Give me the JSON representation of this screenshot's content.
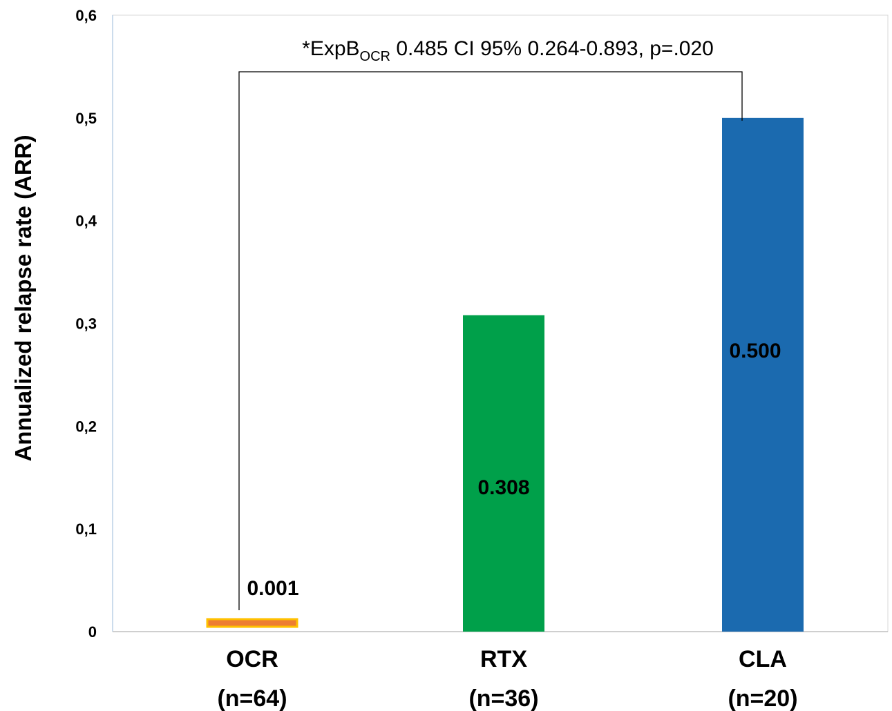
{
  "chart_data": {
    "type": "bar",
    "categories": [
      "OCR",
      "RTX",
      "CLA"
    ],
    "category_subtitles": [
      "(n=64)",
      "(n=36)",
      "(n=20)"
    ],
    "values": [
      0.001,
      0.308,
      0.5
    ],
    "data_labels": [
      "0.001",
      "0.308",
      "0.500"
    ],
    "colors": [
      "#ED7D31",
      "#00A04A",
      "#1B6AAF"
    ],
    "ocr_outline_color": "#FFC000",
    "ylabel": "Annualized relapse rate (ARR)",
    "ylim": [
      0,
      0.6
    ],
    "yticks": [
      0,
      0.1,
      0.2,
      0.3,
      0.4,
      0.5,
      0.6
    ],
    "ytick_labels": [
      "0",
      "0,1",
      "0,2",
      "0,3",
      "0,4",
      "0,5",
      "0,6"
    ],
    "grid": false,
    "annotation": {
      "prefix": "*ExpB",
      "subscript": "OCR",
      "suffix": " 0.485 CI 95% 0.264-0.893, p=.020",
      "from_category": "OCR",
      "to_category": "CLA"
    }
  }
}
